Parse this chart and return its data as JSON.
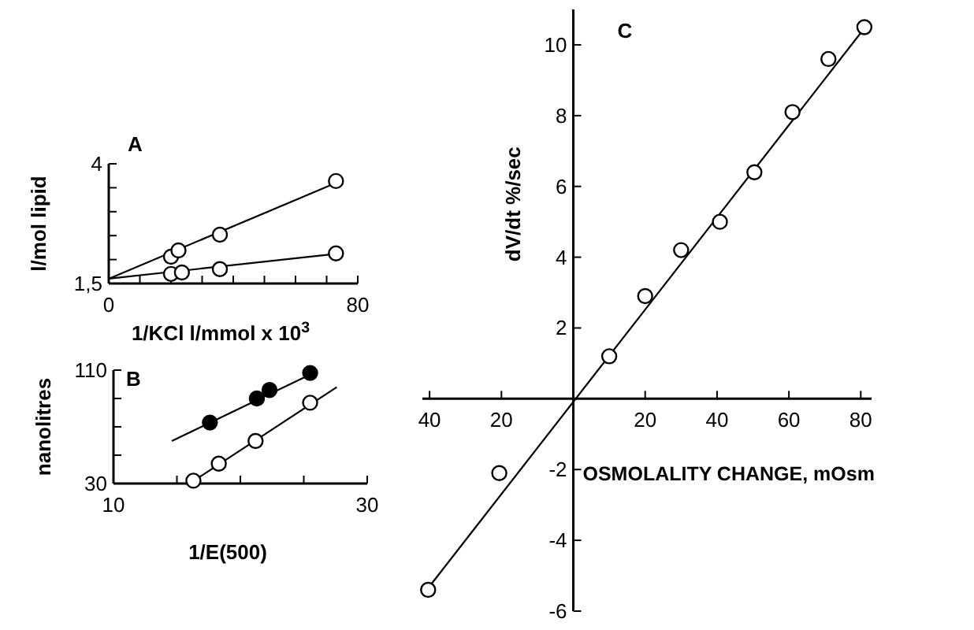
{
  "chart_data": [
    {
      "type": "scatter",
      "title": "A",
      "ylabel": "l/mol lipid",
      "xlabel": "1/KCl l/mmol x 10$^{3}$",
      "xlim": [
        0,
        80
      ],
      "ylim": [
        1.5,
        4
      ],
      "xticks": [
        0,
        {
          "value": 10,
          "label": null
        },
        {
          "value": 20,
          "label": null
        },
        {
          "value": 30,
          "label": null
        },
        {
          "value": 40,
          "label": null
        },
        {
          "value": 50,
          "label": null
        },
        {
          "value": 60,
          "label": null
        },
        {
          "value": 70,
          "label": null
        },
        80
      ],
      "yticks": [
        {
          "value": 1.5,
          "label": "1,5"
        },
        {
          "value": 2,
          "label": null
        },
        {
          "value": 2.5,
          "label": null
        },
        {
          "value": 3,
          "label": null
        },
        {
          "value": 3.5,
          "label": null
        },
        4
      ],
      "marker": "circle",
      "series": [
        {
          "color": "#ffffff",
          "x": [
            20,
            22.4,
            35.7,
            73
          ],
          "values": [
            2.06,
            2.19,
            2.52,
            3.64
          ]
        },
        {
          "color": "#ffffff",
          "x": [
            20,
            23.5,
            35.7,
            73
          ],
          "values": [
            1.7,
            1.73,
            1.8,
            2.13
          ]
        },
        {
          "type": "line",
          "marker": "none",
          "color": "#000000",
          "x": [
            0,
            73
          ],
          "values": [
            1.6,
            3.6
          ]
        },
        {
          "type": "line",
          "marker": "none",
          "color": "#000000",
          "x": [
            0,
            73
          ],
          "values": [
            1.6,
            2.12
          ]
        }
      ]
    },
    {
      "type": "scatter",
      "title": "B",
      "ylabel": "nanolitres",
      "xlabel": "1/E(500)",
      "xlim": [
        10,
        30
      ],
      "ylim": [
        30,
        110
      ],
      "xticks": [
        10,
        {
          "value": 15,
          "label": null
        },
        {
          "value": 20,
          "label": null
        },
        {
          "value": 25,
          "label": null
        },
        30
      ],
      "yticks": [
        30,
        {
          "value": 50,
          "label": null
        },
        {
          "value": 70,
          "label": null
        },
        {
          "value": 90,
          "label": null
        },
        110
      ],
      "marker": "circle",
      "series": [
        {
          "color": "#000000",
          "x": [
            17.6,
            21.3,
            22.3,
            25.5
          ],
          "values": [
            73,
            90,
            96,
            108
          ]
        },
        {
          "color": "#ffffff",
          "x": [
            16.3,
            18.3,
            21.2,
            25.5
          ],
          "values": [
            32,
            44,
            60,
            87
          ]
        },
        {
          "type": "line",
          "marker": "none",
          "color": "#000000",
          "x": [
            14.6,
            26
          ],
          "values": [
            60,
            109
          ]
        },
        {
          "type": "line",
          "marker": "none",
          "color": "#000000",
          "x": [
            16,
            27.6
          ],
          "values": [
            30,
            98
          ]
        }
      ]
    },
    {
      "type": "scatter",
      "title": "C",
      "ylabel": "dV/dt %/sec",
      "xlabel": "OSMOLALITY CHANGE, mOsm",
      "xlim": [
        -42,
        83
      ],
      "ylim": [
        -6,
        11
      ],
      "xticks": [
        {
          "value": -40,
          "label": "40"
        },
        {
          "value": -20,
          "label": "20"
        },
        20,
        40,
        60,
        80
      ],
      "yticks": [
        -6,
        -4,
        -2,
        2,
        4,
        6,
        8,
        10
      ],
      "marker": "circle",
      "series": [
        {
          "color": "#ffffff",
          "x": [
            -40.4,
            -20.6,
            10,
            20,
            30,
            40.8,
            50.4,
            61,
            71,
            81
          ],
          "values": [
            -5.4,
            -2.1,
            1.2,
            2.9,
            4.2,
            5.0,
            6.4,
            8.1,
            9.6,
            10.5
          ]
        },
        {
          "type": "line",
          "marker": "none",
          "color": "#000000",
          "x": [
            -40,
            82
          ],
          "values": [
            -5.3,
            10.6
          ]
        }
      ]
    }
  ]
}
